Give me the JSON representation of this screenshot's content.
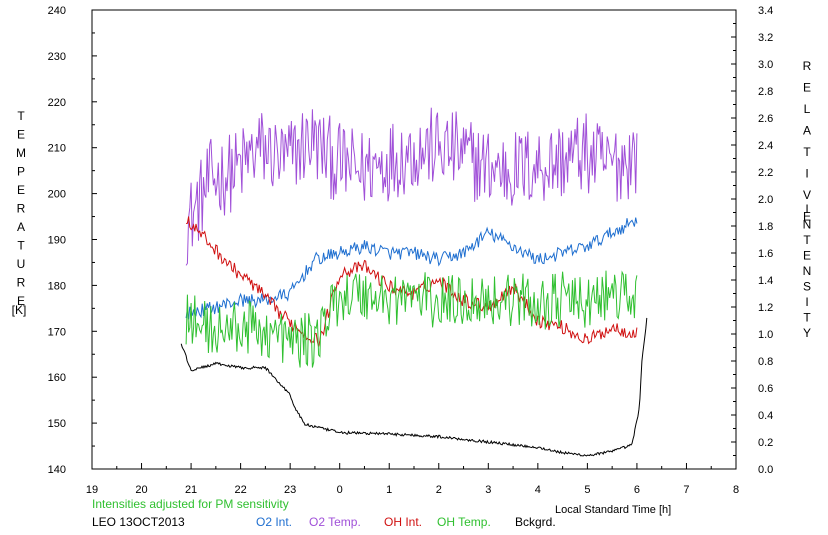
{
  "chart_data": {
    "type": "line",
    "left_axis": {
      "label_letters": [
        "T",
        "E",
        "M",
        "P",
        "E",
        "R",
        "A",
        "T",
        "U",
        "R",
        "E"
      ],
      "unit": "[K]",
      "ylim": [
        140,
        240
      ],
      "ticks": [
        "140",
        "150",
        "160",
        "170",
        "180",
        "190",
        "200",
        "210",
        "220",
        "230",
        "240"
      ]
    },
    "right_axis": {
      "label1_letters": [
        "R",
        "E",
        "L",
        "A",
        "T",
        "I",
        "V",
        "E"
      ],
      "label2_letters": [
        "I",
        "N",
        "T",
        "E",
        "N",
        "S",
        "I",
        "T",
        "Y"
      ],
      "ylim": [
        0.0,
        3.4
      ],
      "ticks": [
        "0.0",
        "0.2",
        "0.4",
        "0.6",
        "0.8",
        "1.0",
        "1.2",
        "1.4",
        "1.6",
        "1.8",
        "2.0",
        "2.2",
        "2.4",
        "2.6",
        "2.8",
        "3.0",
        "3.2",
        "3.4"
      ]
    },
    "x_axis": {
      "label": "Local Standard Time [h]",
      "xlim": [
        19,
        32
      ],
      "ticks": [
        "19",
        "20",
        "21",
        "22",
        "23",
        "0",
        "1",
        "2",
        "3",
        "4",
        "5",
        "6",
        "7",
        "8"
      ]
    },
    "note": "Intensities adjusted for PM sensitivity",
    "station": "LEO 13OCT2013",
    "legend": [
      "O2 Int.",
      "O2 Temp.",
      "OH Int.",
      "OH Temp.",
      "Bckgrd."
    ],
    "colors": {
      "o2_int": "#1f6fd0",
      "o2_temp": "#a050d8",
      "oh_int": "#d01010",
      "oh_temp": "#30c030",
      "bckgrd": "#000000",
      "note": "#30c030"
    },
    "series": [
      {
        "key": "o2_temp",
        "axis": "left",
        "start": 20.9,
        "end": 30.0,
        "points": [
          [
            20.9,
            193
          ],
          [
            21.4,
            203
          ],
          [
            21.9,
            205
          ],
          [
            22.4,
            210
          ],
          [
            22.9,
            207
          ],
          [
            23.4,
            212
          ],
          [
            23.9,
            207
          ],
          [
            24.4,
            205
          ],
          [
            24.9,
            207
          ],
          [
            25.4,
            209
          ],
          [
            25.9,
            210
          ],
          [
            26.4,
            209
          ],
          [
            26.9,
            206
          ],
          [
            27.4,
            205
          ],
          [
            27.9,
            206
          ],
          [
            28.4,
            207
          ],
          [
            28.9,
            209
          ],
          [
            29.4,
            206
          ],
          [
            29.9,
            208
          ]
        ]
      },
      {
        "key": "o2_int",
        "axis": "right",
        "start": 20.9,
        "end": 30.0,
        "points": [
          [
            20.9,
            1.15
          ],
          [
            21.5,
            1.2
          ],
          [
            22.0,
            1.25
          ],
          [
            22.5,
            1.25
          ],
          [
            23.0,
            1.3
          ],
          [
            23.5,
            1.55
          ],
          [
            24.0,
            1.6
          ],
          [
            24.5,
            1.65
          ],
          [
            25.0,
            1.6
          ],
          [
            25.5,
            1.6
          ],
          [
            26.0,
            1.55
          ],
          [
            26.5,
            1.6
          ],
          [
            27.0,
            1.75
          ],
          [
            27.5,
            1.65
          ],
          [
            28.0,
            1.55
          ],
          [
            28.5,
            1.6
          ],
          [
            29.0,
            1.65
          ],
          [
            29.5,
            1.75
          ],
          [
            30.0,
            1.85
          ]
        ]
      },
      {
        "key": "oh_int",
        "axis": "right",
        "start": 20.9,
        "end": 30.0,
        "points": [
          [
            20.9,
            1.85
          ],
          [
            21.3,
            1.7
          ],
          [
            21.8,
            1.5
          ],
          [
            22.3,
            1.35
          ],
          [
            22.8,
            1.15
          ],
          [
            23.3,
            1.0
          ],
          [
            23.6,
            0.95
          ],
          [
            24.0,
            1.45
          ],
          [
            24.5,
            1.5
          ],
          [
            25.0,
            1.35
          ],
          [
            25.5,
            1.3
          ],
          [
            26.0,
            1.4
          ],
          [
            26.5,
            1.25
          ],
          [
            27.0,
            1.2
          ],
          [
            27.5,
            1.35
          ],
          [
            28.0,
            1.1
          ],
          [
            28.5,
            1.05
          ],
          [
            29.0,
            0.95
          ],
          [
            29.5,
            1.05
          ],
          [
            30.0,
            1.0
          ]
        ]
      },
      {
        "key": "oh_temp",
        "axis": "left",
        "start": 20.9,
        "end": 30.0,
        "points": [
          [
            20.9,
            173
          ],
          [
            21.5,
            170
          ],
          [
            22.0,
            171
          ],
          [
            22.5,
            170
          ],
          [
            23.0,
            168
          ],
          [
            23.5,
            168
          ],
          [
            24.0,
            178
          ],
          [
            24.5,
            178
          ],
          [
            25.0,
            177
          ],
          [
            25.5,
            178
          ],
          [
            26.0,
            176
          ],
          [
            26.5,
            177
          ],
          [
            27.0,
            177
          ],
          [
            27.5,
            177
          ],
          [
            28.0,
            176
          ],
          [
            28.5,
            177
          ],
          [
            29.0,
            176
          ],
          [
            29.5,
            178
          ],
          [
            30.0,
            177
          ]
        ]
      },
      {
        "key": "bckgrd",
        "axis": "right",
        "start": 20.8,
        "end": 30.2,
        "points": [
          [
            20.8,
            0.93
          ],
          [
            21.0,
            0.73
          ],
          [
            21.5,
            0.78
          ],
          [
            22.0,
            0.75
          ],
          [
            22.5,
            0.75
          ],
          [
            23.0,
            0.55
          ],
          [
            23.1,
            0.45
          ],
          [
            23.3,
            0.33
          ],
          [
            24.0,
            0.27
          ],
          [
            25.0,
            0.26
          ],
          [
            25.5,
            0.25
          ],
          [
            26.0,
            0.24
          ],
          [
            26.5,
            0.22
          ],
          [
            27.0,
            0.2
          ],
          [
            27.5,
            0.18
          ],
          [
            28.0,
            0.16
          ],
          [
            28.5,
            0.12
          ],
          [
            29.0,
            0.1
          ],
          [
            29.5,
            0.13
          ],
          [
            29.9,
            0.18
          ],
          [
            30.05,
            0.45
          ],
          [
            30.1,
            0.8
          ],
          [
            30.2,
            1.11
          ]
        ]
      }
    ]
  }
}
